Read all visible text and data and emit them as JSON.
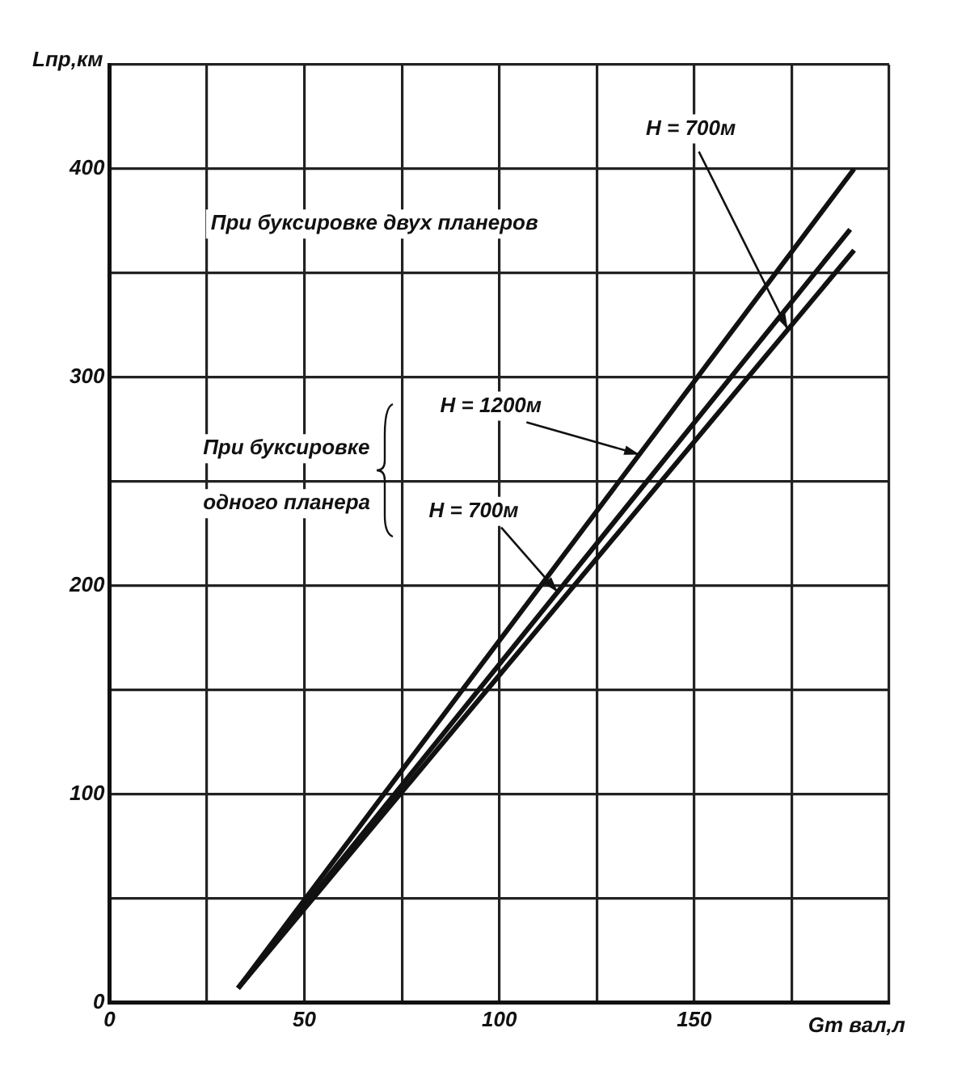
{
  "chart_data": {
    "type": "line",
    "xlabel": "Gт вал,л",
    "ylabel": "Lпр,км",
    "series": [
      {
        "color": "#111111",
        "x": [
          33,
          191
        ],
        "values": [
          7,
          400
        ]
      },
      {
        "color": "#111111",
        "x": [
          33,
          190
        ],
        "values": [
          7,
          371
        ]
      },
      {
        "color": "#111111",
        "x": [
          33,
          191
        ],
        "values": [
          7,
          361
        ]
      }
    ],
    "xlim": [
      0,
      200
    ],
    "xticks": [
      0,
      {
        "value": 25,
        "label": null
      },
      50,
      {
        "value": 75,
        "label": null
      },
      100,
      {
        "value": 125,
        "label": null
      },
      150,
      {
        "value": 175,
        "label": null
      },
      {
        "value": 200,
        "label": null
      }
    ],
    "ylim": [
      0,
      450
    ],
    "yticks": [
      0,
      {
        "value": 50,
        "label": null
      },
      100,
      {
        "value": 150,
        "label": null
      },
      200,
      {
        "value": 250,
        "label": null
      },
      300,
      {
        "value": 350,
        "label": null
      },
      400,
      {
        "value": 450,
        "label": null
      }
    ],
    "grid": true,
    "marker": "none",
    "line_style": "solid",
    "annotations": [
      {
        "text": "H = 700м",
        "x": 174,
        "y": 323
      },
      "При буксировке двух планеров",
      "При буксировке одного планера",
      {
        "text": "H = 1200м",
        "x": 136,
        "y": 263
      },
      {
        "text": "H = 700м",
        "x": 115,
        "y": 197
      }
    ]
  }
}
